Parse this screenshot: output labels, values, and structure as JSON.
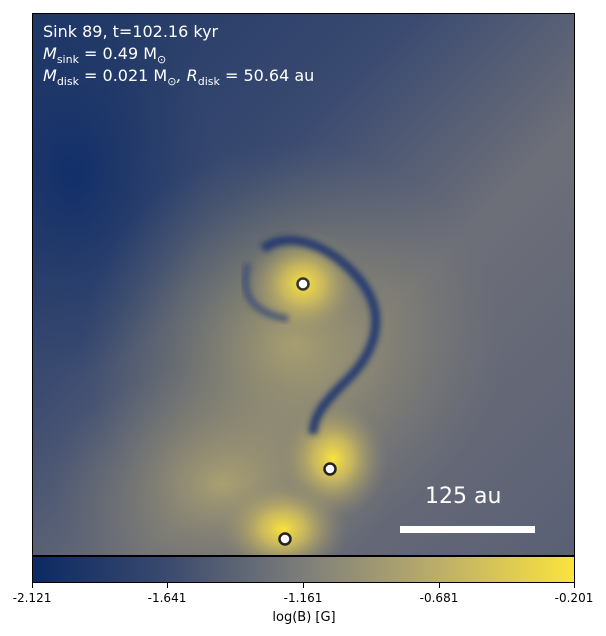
{
  "annotation": {
    "title": "Sink 89, t=102.16 kyr",
    "m_sink_symbol": "M",
    "m_sink_sub": "sink",
    "m_sink_value": " = 0.49 M",
    "m_sun_sub": "⊙",
    "m_disk_symbol": "M",
    "m_disk_sub": "disk",
    "m_disk_value": " = 0.021 M",
    "m_disk_sun_sub": "⊙",
    "r_disk_symbol": ", R",
    "r_disk_sub": "disk",
    "r_disk_value": " = 50.64 au"
  },
  "scale_bar": {
    "label": "125 au"
  },
  "colorbar": {
    "label": "log(B) [G]",
    "ticks": [
      "-2.121",
      "-1.641",
      "-1.161",
      "-0.681",
      "-0.201"
    ],
    "colors": {
      "low": "#0b2a63",
      "mid": "#7d7e7a",
      "high": "#fbe43c"
    }
  },
  "sinks": [
    {
      "name": "sink-upper"
    },
    {
      "name": "sink-middle"
    },
    {
      "name": "sink-lower"
    }
  ]
}
